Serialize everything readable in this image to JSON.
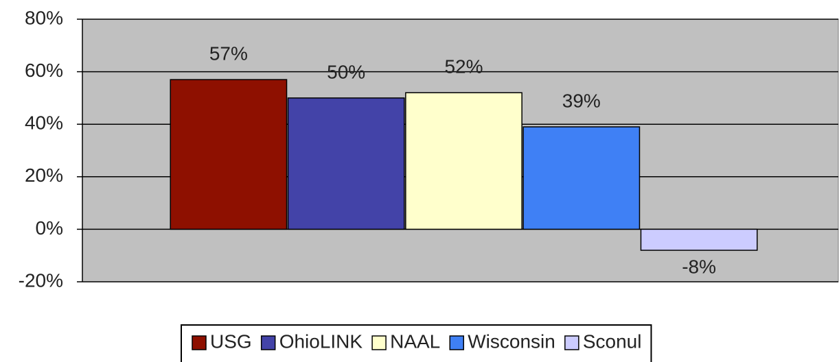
{
  "chart_data": {
    "type": "bar",
    "series": [
      {
        "name": "USG",
        "color": "#8e1000",
        "values": [
          57
        ],
        "value_labels": [
          "57%"
        ]
      },
      {
        "name": "OhioLINK",
        "color": "#4343a8",
        "values": [
          50
        ],
        "value_labels": [
          "50%"
        ]
      },
      {
        "name": "NAAL",
        "color": "#ffffcc",
        "values": [
          52
        ],
        "value_labels": [
          "52%"
        ]
      },
      {
        "name": "Wisconsin",
        "color": "#3f80f5",
        "values": [
          39
        ],
        "value_labels": [
          "39%"
        ]
      },
      {
        "name": "Sconul",
        "color": "#ccccff",
        "values": [
          -8
        ],
        "value_labels": [
          "-8%"
        ]
      }
    ],
    "ylim": [
      -20,
      80
    ],
    "yticks": [
      {
        "value": -20,
        "label": "-20%"
      },
      {
        "value": 0,
        "label": "0%"
      },
      {
        "value": 20,
        "label": "20%"
      },
      {
        "value": 40,
        "label": "40%"
      },
      {
        "value": 60,
        "label": "60%"
      },
      {
        "value": 80,
        "label": "80%"
      }
    ],
    "grid": true,
    "legend": "bottom"
  }
}
